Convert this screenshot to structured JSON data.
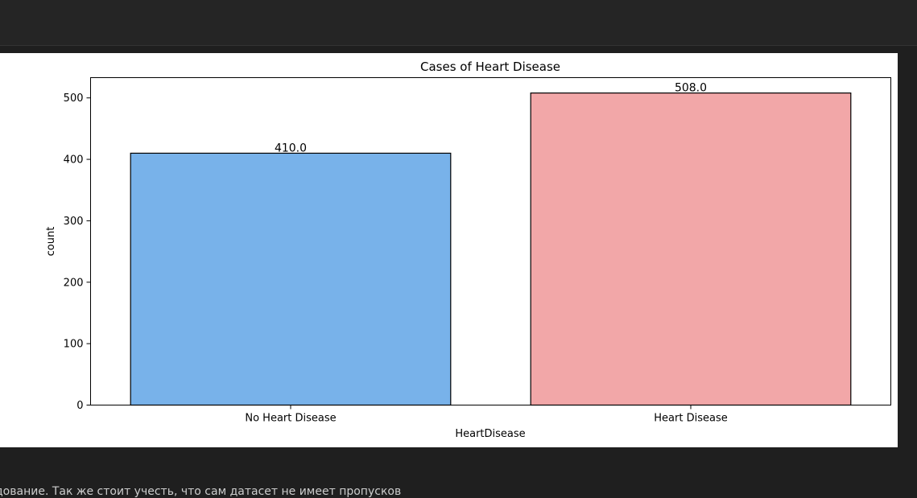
{
  "colors": {
    "no_disease_bar": "#78b2ea",
    "disease_bar": "#f2a7a8",
    "bar_edge": "#000000",
    "page_background": "#1f1f1f",
    "panel_background": "#ffffff"
  },
  "chart_data": {
    "type": "bar",
    "title": "Cases of Heart Disease",
    "xlabel": "HeartDisease",
    "ylabel": "count",
    "categories": [
      "No Heart Disease",
      "Heart Disease"
    ],
    "values": [
      410,
      508
    ],
    "data_labels": [
      "410.0",
      "508.0"
    ],
    "ylim": [
      0,
      533
    ],
    "yticks": [
      0,
      100,
      200,
      300,
      400,
      500
    ],
    "ytick_labels": [
      "0",
      "100",
      "200",
      "300",
      "400",
      "500"
    ],
    "bar_colors": [
      "#78b2ea",
      "#f2a7a8"
    ],
    "grid": false,
    "legend": "none"
  },
  "footer_text": "дование. Так же стоит учесть, что сам датасет не имеет пропусков"
}
